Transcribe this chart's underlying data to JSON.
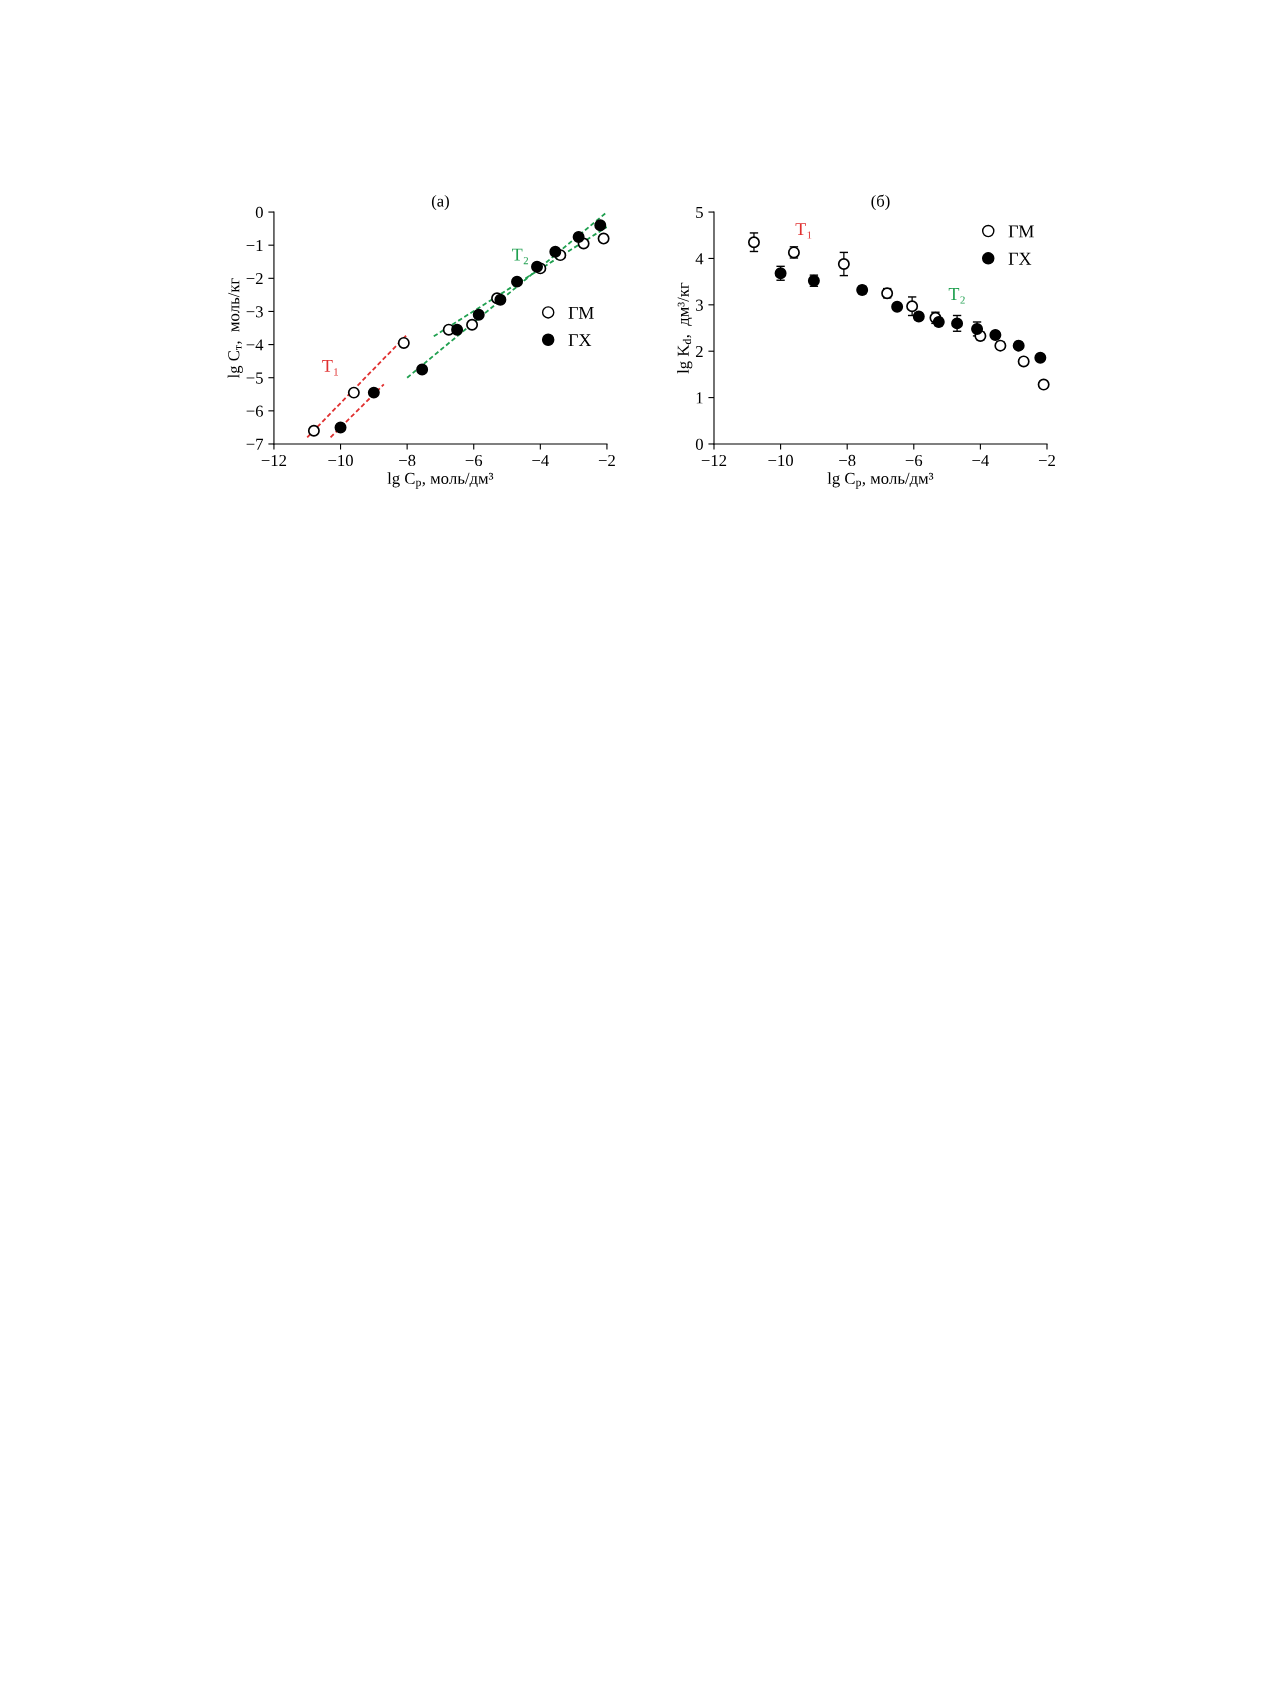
{
  "chart_data": [
    {
      "type": "scatter",
      "title": "(a)",
      "xlabel": "lg C$_{р}$, моль/дм³",
      "ylabel": "lg C$_{т}$,  моль/кг",
      "xlim": [
        -12,
        -2
      ],
      "xticks": [
        {
          "value": -12,
          "label": "−12"
        },
        {
          "value": -10,
          "label": "−10"
        },
        {
          "value": -8,
          "label": "−8"
        },
        {
          "value": -6,
          "label": "−6"
        },
        {
          "value": -4,
          "label": "−4"
        },
        {
          "value": -2,
          "label": "−2"
        }
      ],
      "ylim": [
        -7,
        0
      ],
      "yticks": [
        {
          "value": -7,
          "label": "−7"
        },
        {
          "value": -6,
          "label": "−6"
        },
        {
          "value": -5,
          "label": "−5"
        },
        {
          "value": -4,
          "label": "−4"
        },
        {
          "value": -3,
          "label": "−3"
        },
        {
          "value": -2,
          "label": "−2"
        },
        {
          "value": -1,
          "label": "−1"
        },
        0
      ],
      "legend": "right",
      "grid": false,
      "annotations": [
        "T₁",
        "T₂"
      ],
      "series": [
        {
          "name": "ГМ",
          "marker": "circle",
          "color": "#ffffff",
          "x": [
            -10.8,
            -9.6,
            -8.1,
            -6.75,
            -6.05,
            -5.3,
            -4.0,
            -3.4,
            -2.7,
            -2.1
          ],
          "values": [
            -6.6,
            -5.45,
            -3.95,
            -3.55,
            -3.4,
            -2.6,
            -1.7,
            -1.3,
            -0.95,
            -0.8
          ]
        },
        {
          "name": "ГХ",
          "marker": "circle",
          "color": "#000000",
          "x": [
            -10.0,
            -9.0,
            -7.55,
            -6.5,
            -5.85,
            -5.2,
            -4.7,
            -4.1,
            -3.55,
            -2.85,
            -2.2
          ],
          "values": [
            -6.5,
            -5.45,
            -4.75,
            -3.55,
            -3.1,
            -2.65,
            -2.1,
            -1.65,
            -1.2,
            -0.75,
            -0.4
          ]
        },
        {
          "type": "line",
          "line_style": "dashed",
          "color": "#e03030",
          "x": [
            -11.0,
            -8.0
          ],
          "values": [
            -6.8,
            -3.7
          ]
        },
        {
          "type": "line",
          "line_style": "dashed",
          "color": "#e03030",
          "x": [
            -10.3,
            -8.7
          ],
          "values": [
            -6.8,
            -5.2
          ]
        },
        {
          "type": "line",
          "line_style": "dashed",
          "color": "#20a050",
          "x": [
            -8.0,
            -2.0
          ],
          "values": [
            -5.0,
            0.0
          ]
        },
        {
          "type": "line",
          "line_style": "dashed",
          "color": "#20a050",
          "x": [
            -7.2,
            -2.0
          ],
          "values": [
            -3.75,
            -0.45
          ]
        }
      ]
    },
    {
      "type": "scatter",
      "title": "(б)",
      "xlabel": "lg C$_{р}$, моль/дм³",
      "ylabel": "lg K$_{d}$,  дм³/кг",
      "xlim": [
        -12,
        -2
      ],
      "xticks": [
        {
          "value": -12,
          "label": "−12"
        },
        {
          "value": -10,
          "label": "−10"
        },
        {
          "value": -8,
          "label": "−8"
        },
        {
          "value": -6,
          "label": "−6"
        },
        {
          "value": -4,
          "label": "−4"
        },
        {
          "value": -2,
          "label": "−2"
        }
      ],
      "ylim": [
        0,
        5
      ],
      "yticks": [
        0,
        1,
        2,
        3,
        4,
        5
      ],
      "legend": "top right",
      "grid": false,
      "annotations": [
        "T₁",
        "T₂"
      ],
      "series": [
        {
          "name": "ГМ",
          "marker": "circle",
          "color": "#ffffff",
          "x": [
            -10.8,
            -9.6,
            -8.1,
            -6.8,
            -6.05,
            -5.35,
            -4.0,
            -3.4,
            -2.7,
            -2.1
          ],
          "values": [
            4.35,
            4.13,
            3.88,
            3.25,
            2.97,
            2.72,
            2.33,
            2.12,
            1.78,
            1.28
          ],
          "errors": [
            0.2,
            0.12,
            0.25,
            0.1,
            0.2,
            0.12,
            0.08,
            0.08,
            0.07,
            0.07
          ]
        },
        {
          "name": "ГХ",
          "marker": "circle",
          "color": "#000000",
          "x": [
            -10.0,
            -9.0,
            -7.55,
            -6.5,
            -5.85,
            -5.25,
            -4.7,
            -4.1,
            -3.55,
            -2.85,
            -2.2
          ],
          "values": [
            3.68,
            3.52,
            3.32,
            2.96,
            2.75,
            2.63,
            2.6,
            2.48,
            2.35,
            2.12,
            1.86
          ],
          "errors": [
            0.15,
            0.12,
            0.08,
            0.05,
            0.08,
            0.08,
            0.17,
            0.15,
            0.07,
            0.07,
            0.05
          ]
        }
      ]
    }
  ]
}
